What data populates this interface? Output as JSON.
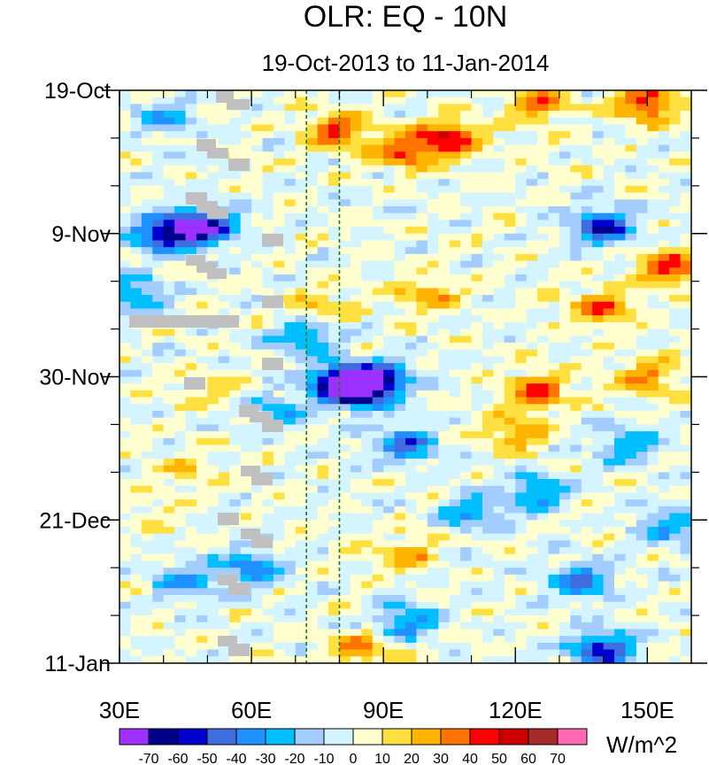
{
  "chart_data": {
    "type": "heatmap",
    "title": "OLR: EQ - 10N",
    "subtitle": "19-Oct-2013 to 11-Jan-2014",
    "x_range": [
      30,
      160
    ],
    "y_range": [
      "19-Oct",
      "11-Jan"
    ],
    "y_days_total": 84,
    "x_ticks": [
      {
        "value": 30,
        "label": "30E"
      },
      {
        "value": 60,
        "label": "60E"
      },
      {
        "value": 90,
        "label": "90E"
      },
      {
        "value": 120,
        "label": "120E"
      },
      {
        "value": 150,
        "label": "150E"
      }
    ],
    "y_ticks": [
      {
        "day": 0,
        "label": "19-Oct"
      },
      {
        "day": 21,
        "label": "9-Nov"
      },
      {
        "day": 42,
        "label": "30-Nov"
      },
      {
        "day": 63,
        "label": "21-Dec"
      },
      {
        "day": 84,
        "label": "11-Jan"
      }
    ],
    "reference_lines_lon": [
      72.5,
      80
    ],
    "colorbar": {
      "unit_label": "W/m^2",
      "levels": [
        "-70",
        "-60",
        "-50",
        "-40",
        "-30",
        "-20",
        "-10",
        "0",
        "10",
        "20",
        "30",
        "40",
        "50",
        "60",
        "70"
      ],
      "colors": [
        "#9b30ff",
        "#00008b",
        "#0000cd",
        "#3f6de0",
        "#1e90ff",
        "#00bfff",
        "#a4cdff",
        "#d4f4ff",
        "#ffffd0",
        "#ffe040",
        "#ffb400",
        "#ff7300",
        "#ff0000",
        "#cc0000",
        "#a52a2a",
        "#ff69b4"
      ]
    },
    "features": [
      {
        "lon": 40,
        "day": 21,
        "value": -60
      },
      {
        "lon": 49,
        "day": 20,
        "value": -70
      },
      {
        "lon": 80,
        "day": 43,
        "value": -70
      },
      {
        "lon": 85,
        "day": 44,
        "value": -65
      },
      {
        "lon": 90,
        "day": 42,
        "value": -40
      },
      {
        "lon": 72,
        "day": 36,
        "value": -35
      },
      {
        "lon": 95,
        "day": 52,
        "value": -40
      },
      {
        "lon": 105,
        "day": 7,
        "value": 50
      },
      {
        "lon": 95,
        "day": 9,
        "value": 40
      },
      {
        "lon": 80,
        "day": 6,
        "value": 40
      },
      {
        "lon": 125,
        "day": 2,
        "value": 35
      },
      {
        "lon": 150,
        "day": 2,
        "value": 45
      },
      {
        "lon": 155,
        "day": 26,
        "value": 45
      },
      {
        "lon": 140,
        "day": 32,
        "value": 35
      },
      {
        "lon": 150,
        "day": 42,
        "value": 30
      },
      {
        "lon": 125,
        "day": 44,
        "value": 40
      },
      {
        "lon": 100,
        "day": 30,
        "value": 25
      },
      {
        "lon": 75,
        "day": 32,
        "value": 20
      },
      {
        "lon": 50,
        "day": 44,
        "value": 15
      },
      {
        "lon": 45,
        "day": 56,
        "value": 15
      },
      {
        "lon": 95,
        "day": 68,
        "value": 25
      },
      {
        "lon": 140,
        "day": 20,
        "value": -55
      },
      {
        "lon": 125,
        "day": 59,
        "value": -35
      },
      {
        "lon": 135,
        "day": 72,
        "value": -40
      },
      {
        "lon": 140,
        "day": 82,
        "value": -55
      },
      {
        "lon": 110,
        "day": 62,
        "value": -30
      },
      {
        "lon": 95,
        "day": 78,
        "value": -35
      },
      {
        "lon": 40,
        "day": 4,
        "value": -25
      },
      {
        "lon": 34,
        "day": 30,
        "value": -30
      },
      {
        "lon": 60,
        "day": 70,
        "value": -35
      },
      {
        "lon": 45,
        "day": 72,
        "value": -30
      },
      {
        "lon": 120,
        "day": 50,
        "value": 30
      },
      {
        "lon": 145,
        "day": 52,
        "value": -30
      },
      {
        "lon": 155,
        "day": 64,
        "value": -30
      },
      {
        "lon": 85,
        "day": 82,
        "value": 30
      },
      {
        "lon": 65,
        "day": 47,
        "value": -25
      },
      {
        "lon": 38,
        "day": 62,
        "value": 10
      }
    ]
  }
}
